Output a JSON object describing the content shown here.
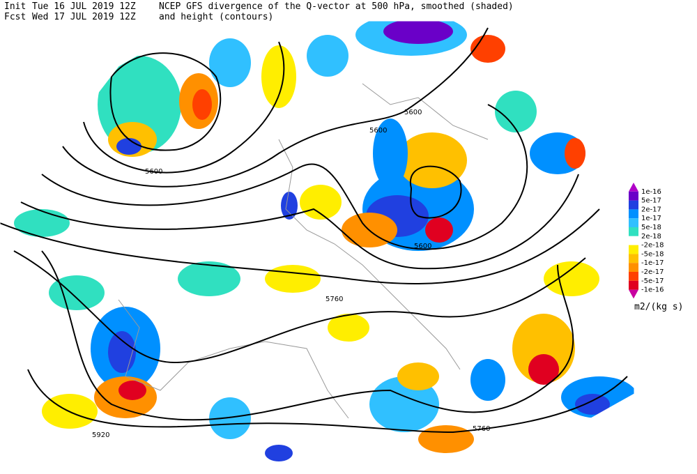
{
  "header": {
    "init_label": "Init",
    "init_time": "Tue 16 JUL 2019 12Z",
    "fcst_label": "Fcst",
    "fcst_time": "Wed 17 JUL 2019 12Z",
    "title": "NCEP GFS divergence of the Q-vector at 500 hPa, smoothed (shaded)",
    "subtitle": "and height (contours)"
  },
  "colorbar": {
    "labels": [
      "1e-16",
      "5e-17",
      "2e-17",
      "1e-17",
      "5e-18",
      "2e-18",
      "-2e-18",
      "-5e-18",
      "-1e-17",
      "-2e-17",
      "-5e-17",
      "-1e-16"
    ],
    "colors": [
      "#b000c8",
      "#6a00c8",
      "#2040e0",
      "#0090ff",
      "#30c0ff",
      "#30e0c0",
      "#ffffff",
      "#ffee00",
      "#ffc000",
      "#ff9000",
      "#ff4000",
      "#e00020",
      "#c800a0"
    ],
    "units": "m2/(kg s)"
  },
  "contour_labels": [
    "5600",
    "5600",
    "5600",
    "5600",
    "5760",
    "5760",
    "5920"
  ]
}
